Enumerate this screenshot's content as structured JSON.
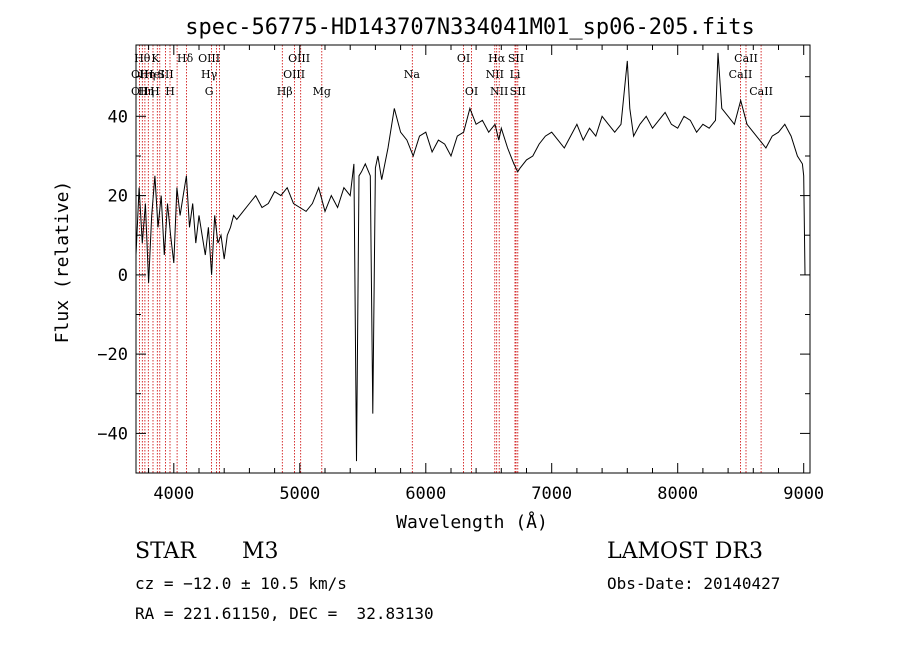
{
  "chart_data": {
    "type": "line",
    "title": "spec-56775-HD143707N334041M01_sp06-205.fits",
    "xlabel": "Wavelength (Å)",
    "ylabel": "Flux (relative)",
    "xlim": [
      3700,
      9050
    ],
    "ylim": [
      -50,
      58
    ],
    "x_ticks": [
      4000,
      5000,
      6000,
      7000,
      8000,
      9000
    ],
    "y_ticks": [
      -40,
      -20,
      0,
      20,
      40
    ],
    "grid": false,
    "series": [
      {
        "color": "#000000",
        "x": [
          3700,
          3725,
          3750,
          3775,
          3800,
          3825,
          3850,
          3875,
          3900,
          3925,
          3950,
          3975,
          4000,
          4025,
          4050,
          4075,
          4100,
          4125,
          4150,
          4175,
          4200,
          4225,
          4250,
          4275,
          4300,
          4325,
          4350,
          4375,
          4400,
          4425,
          4450,
          4475,
          4500,
          4550,
          4600,
          4650,
          4700,
          4750,
          4800,
          4850,
          4900,
          4950,
          5000,
          5050,
          5100,
          5150,
          5200,
          5250,
          5300,
          5350,
          5400,
          5430,
          5450,
          5470,
          5490,
          5520,
          5560,
          5580,
          5600,
          5620,
          5650,
          5700,
          5750,
          5800,
          5850,
          5900,
          5950,
          6000,
          6050,
          6100,
          6150,
          6200,
          6250,
          6300,
          6350,
          6400,
          6450,
          6500,
          6550,
          6580,
          6600,
          6650,
          6700,
          6730,
          6750,
          6800,
          6850,
          6900,
          6950,
          7000,
          7050,
          7100,
          7150,
          7200,
          7250,
          7300,
          7350,
          7400,
          7450,
          7500,
          7550,
          7600,
          7620,
          7650,
          7700,
          7750,
          7800,
          7850,
          7900,
          7950,
          8000,
          8050,
          8100,
          8150,
          8200,
          8250,
          8300,
          8320,
          8350,
          8400,
          8450,
          8500,
          8550,
          8600,
          8650,
          8700,
          8750,
          8800,
          8850,
          8900,
          8950,
          8990,
          9000,
          9010
        ],
        "y": [
          5,
          22,
          8,
          18,
          -2,
          15,
          25,
          12,
          20,
          5,
          18,
          10,
          3,
          22,
          15,
          20,
          25,
          12,
          18,
          8,
          15,
          10,
          5,
          12,
          0,
          15,
          8,
          10,
          4,
          10,
          12,
          15,
          14,
          16,
          18,
          20,
          17,
          18,
          21,
          20,
          22,
          18,
          17,
          16,
          18,
          22,
          16,
          20,
          17,
          22,
          20,
          28,
          -47,
          25,
          26,
          28,
          25,
          -35,
          27,
          30,
          24,
          32,
          42,
          36,
          34,
          30,
          35,
          36,
          31,
          34,
          33,
          30,
          35,
          36,
          42,
          38,
          39,
          36,
          38,
          34,
          37,
          32,
          28,
          26,
          27,
          29,
          30,
          33,
          35,
          36,
          34,
          32,
          35,
          38,
          34,
          37,
          35,
          40,
          38,
          36,
          38,
          54,
          42,
          35,
          38,
          40,
          37,
          39,
          41,
          38,
          37,
          40,
          39,
          36,
          38,
          37,
          39,
          56,
          42,
          40,
          38,
          44,
          38,
          36,
          34,
          32,
          35,
          36,
          38,
          35,
          30,
          28,
          25,
          0
        ]
      }
    ],
    "line_labels": [
      {
        "x": 3750,
        "row": 1,
        "text": "Hθ"
      },
      {
        "x": 3730,
        "row": 2,
        "text": "OII"
      },
      {
        "x": 3730,
        "row": 3,
        "text": "OII"
      },
      {
        "x": 3790,
        "row": 2,
        "text": "Hη"
      },
      {
        "x": 3845,
        "row": 2,
        "text": "HeI"
      },
      {
        "x": 3780,
        "row": 3,
        "text": "Hη"
      },
      {
        "x": 3850,
        "row": 3,
        "text": "H"
      },
      {
        "x": 3855,
        "row": 1,
        "text": "K"
      },
      {
        "x": 3935,
        "row": 2,
        "text": "SII"
      },
      {
        "x": 3970,
        "row": 3,
        "text": "H"
      },
      {
        "x": 4090,
        "row": 1,
        "text": "Hδ"
      },
      {
        "x": 4280,
        "row": 1,
        "text": "OIII"
      },
      {
        "x": 4280,
        "row": 2,
        "text": "Hγ"
      },
      {
        "x": 4280,
        "row": 3,
        "text": "G"
      },
      {
        "x": 4880,
        "row": 3,
        "text": "Hβ"
      },
      {
        "x": 4995,
        "row": 1,
        "text": "OIII"
      },
      {
        "x": 4955,
        "row": 2,
        "text": "OIII"
      },
      {
        "x": 5175,
        "row": 3,
        "text": "Mg"
      },
      {
        "x": 5890,
        "row": 2,
        "text": "Na"
      },
      {
        "x": 6300,
        "row": 1,
        "text": "OI"
      },
      {
        "x": 6364,
        "row": 3,
        "text": "OI"
      },
      {
        "x": 6563,
        "row": 1,
        "text": "Hα"
      },
      {
        "x": 6548,
        "row": 2,
        "text": "NII"
      },
      {
        "x": 6583,
        "row": 3,
        "text": "NII"
      },
      {
        "x": 6716,
        "row": 1,
        "text": "SII"
      },
      {
        "x": 6708,
        "row": 2,
        "text": "Li"
      },
      {
        "x": 6731,
        "row": 3,
        "text": "SII"
      },
      {
        "x": 8542,
        "row": 1,
        "text": "CaII"
      },
      {
        "x": 8498,
        "row": 2,
        "text": "CaII"
      },
      {
        "x": 8662,
        "row": 3,
        "text": "CaII"
      }
    ],
    "marker_lines": [
      3727,
      3750,
      3771,
      3798,
      3835,
      3869,
      3889,
      3934,
      3970,
      4026,
      4102,
      4300,
      4340,
      4363,
      4861,
      4959,
      5007,
      5175,
      5893,
      6300,
      6364,
      6548,
      6563,
      6583,
      6708,
      6716,
      6731,
      8498,
      8542,
      8662
    ]
  },
  "info": {
    "object_class": "STAR",
    "subclass": "M3",
    "survey": "LAMOST DR3",
    "cz": "cz = −12.0 ± 10.5 km/s",
    "obs_date": "Obs-Date: 20140427",
    "coords": "RA = 221.61150, DEC =  32.83130"
  },
  "colors": {
    "spectrum": "#000000",
    "marker_lines": "#cc0000",
    "axes": "#000000"
  }
}
